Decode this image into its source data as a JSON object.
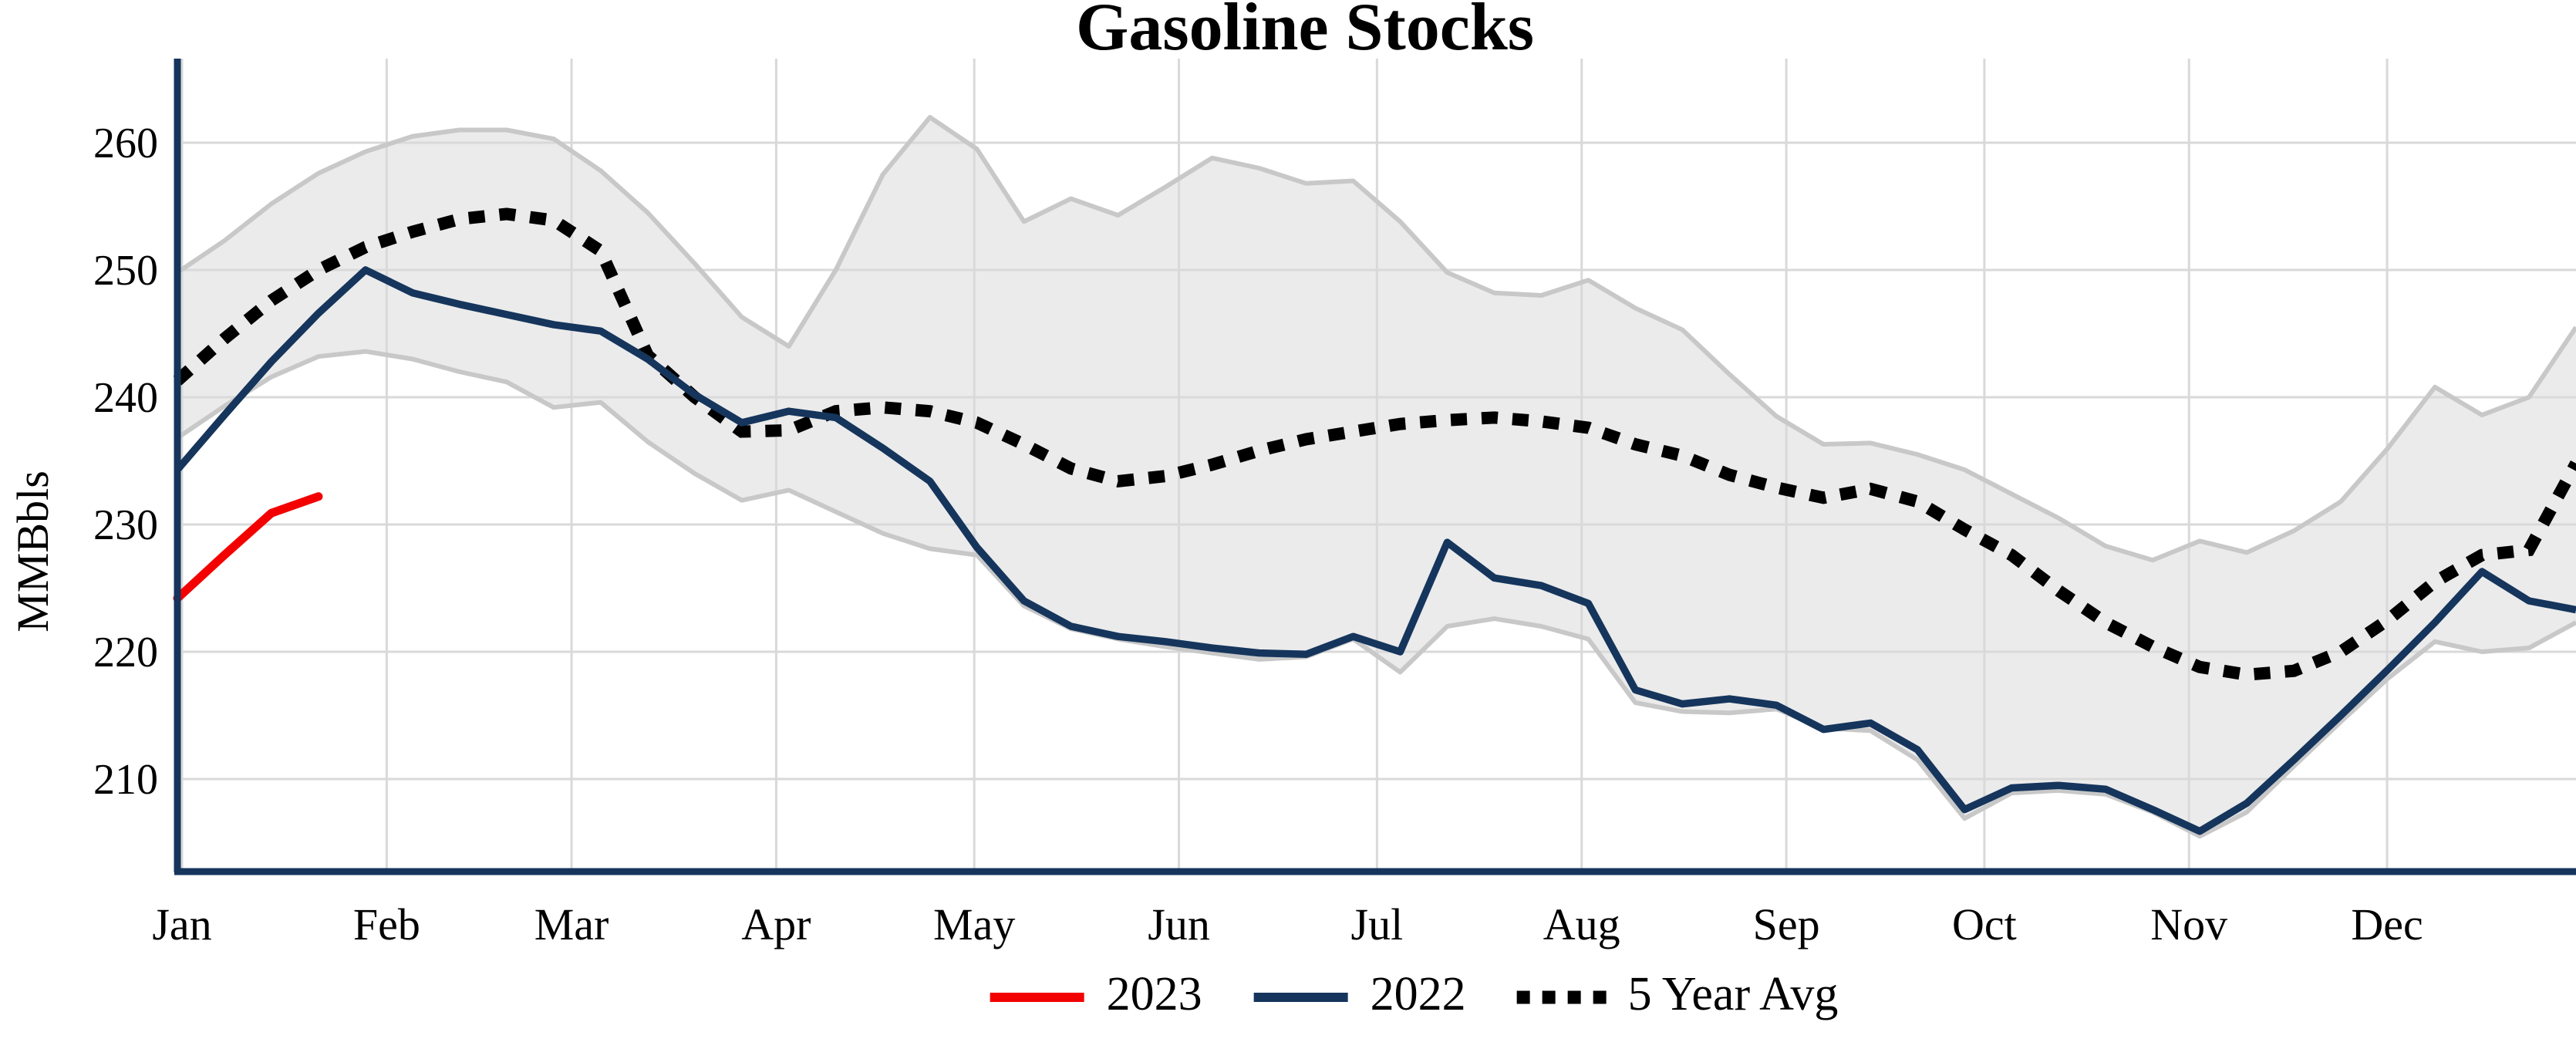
{
  "title": "Gasoline Stocks",
  "y_axis": {
    "label": "MMBbls",
    "ticks": [
      260,
      250,
      240,
      230,
      220,
      210
    ]
  },
  "x_axis": {
    "months": [
      "Jan",
      "Feb",
      "Mar",
      "Apr",
      "May",
      "Jun",
      "Jul",
      "Aug",
      "Sep",
      "Oct",
      "Nov",
      "Dec"
    ]
  },
  "legend": [
    {
      "label": "2023",
      "style": "solid",
      "color": "#f30000"
    },
    {
      "label": "2022",
      "style": "solid",
      "color": "#15355c"
    },
    {
      "label": "5 Year Avg",
      "style": "dotted",
      "color": "#000000"
    }
  ],
  "colors": {
    "axis": "#15355c",
    "grid": "#d9d9d9",
    "band_fill": "#ebebeb",
    "band_edge": "#c8c8c8",
    "series_2023": "#f30000",
    "series_2022": "#15355c",
    "series_avg": "#000000",
    "text": "#000000"
  },
  "chart_data": {
    "type": "line",
    "title": "Gasoline Stocks",
    "ylabel": "MMBbls",
    "xlabel": "",
    "ylim": [
      197,
      266.5
    ],
    "x_unit": "weekly, Jan through Dec",
    "grid": true,
    "legend_position": "bottom",
    "band": {
      "name": "5 Year Range",
      "upper": [
        249.8,
        252.3,
        255.2,
        257.6,
        259.3,
        260.5,
        261.0,
        261.0,
        260.3,
        257.8,
        254.5,
        250.5,
        246.3,
        244.0,
        250.0,
        257.5,
        262.0,
        259.5,
        253.8,
        255.6,
        254.3,
        256.5,
        258.8,
        258.0,
        256.8,
        257.0,
        253.8,
        249.8,
        248.2,
        248.0,
        249.2,
        247.0,
        245.3,
        241.8,
        238.5,
        236.3,
        236.4,
        235.5,
        234.3,
        232.4,
        230.5,
        228.3,
        227.2,
        228.7,
        227.8,
        229.5,
        231.8,
        236.0,
        240.8,
        238.6,
        240.0,
        245.5
      ],
      "lower": [
        236.8,
        239.3,
        241.6,
        243.2,
        243.6,
        243.0,
        242.0,
        241.2,
        239.2,
        239.6,
        236.5,
        234.0,
        231.9,
        232.7,
        231.0,
        229.3,
        228.1,
        227.6,
        223.6,
        221.8,
        221.0,
        220.4,
        219.9,
        219.4,
        219.6,
        221.0,
        218.4,
        222.0,
        222.6,
        222.0,
        221.0,
        216.0,
        215.3,
        215.2,
        215.5,
        214.0,
        213.8,
        211.5,
        206.9,
        208.9,
        209.1,
        208.8,
        207.4,
        205.5,
        207.4,
        211.0,
        214.5,
        217.9,
        220.8,
        220.0,
        220.3,
        222.3
      ]
    },
    "series": [
      {
        "name": "2023",
        "values": [
          224.2,
          227.6,
          230.9,
          232.2
        ]
      },
      {
        "name": "2022",
        "values": [
          234.3,
          238.6,
          242.8,
          246.6,
          250.0,
          248.2,
          247.3,
          246.5,
          245.7,
          245.2,
          243.0,
          240.2,
          238.0,
          238.9,
          238.4,
          236.0,
          233.4,
          228.2,
          224.0,
          222.0,
          221.2,
          220.8,
          220.3,
          219.9,
          219.8,
          221.2,
          220.0,
          228.6,
          225.8,
          225.2,
          223.8,
          217.0,
          215.9,
          216.3,
          215.8,
          213.9,
          214.4,
          212.3,
          207.6,
          209.3,
          209.5,
          209.2,
          207.6,
          205.9,
          208.1,
          211.5,
          215.0,
          218.6,
          222.3,
          226.3,
          224.0,
          223.3
        ]
      },
      {
        "name": "5 Year Avg",
        "values": [
          241.3,
          244.6,
          247.6,
          250.0,
          251.8,
          253.0,
          254.0,
          254.4,
          253.9,
          251.5,
          243.3,
          240.0,
          237.3,
          237.4,
          238.9,
          239.2,
          238.9,
          238.0,
          236.3,
          234.4,
          233.4,
          233.8,
          234.7,
          235.8,
          236.7,
          237.3,
          237.9,
          238.2,
          238.4,
          238.1,
          237.6,
          236.3,
          235.4,
          233.9,
          232.9,
          232.1,
          232.8,
          231.8,
          229.6,
          227.6,
          224.8,
          222.3,
          220.4,
          218.8,
          218.2,
          218.5,
          220.0,
          222.5,
          225.5,
          227.6,
          228.0,
          234.8
        ]
      }
    ]
  }
}
